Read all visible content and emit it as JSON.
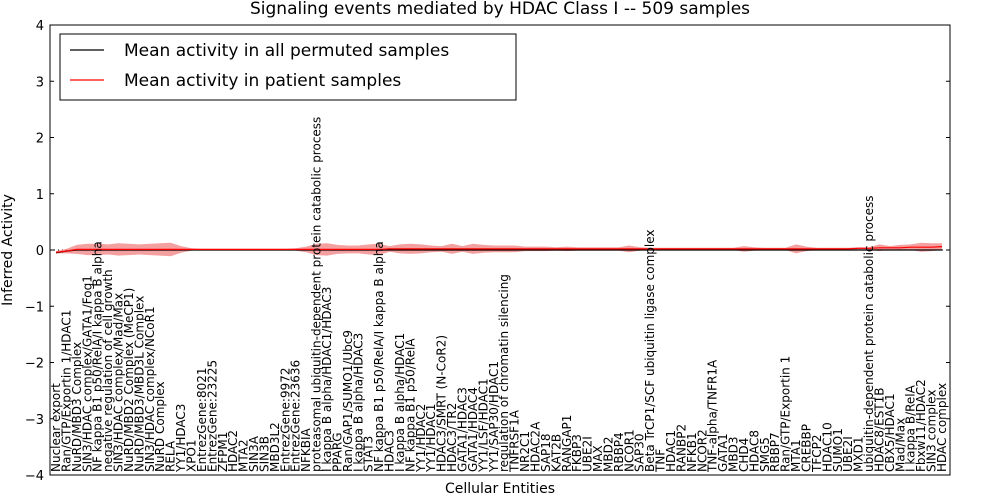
{
  "chart_data": {
    "type": "line",
    "title": "Signaling events mediated by HDAC Class I -- 509 samples",
    "xlabel": "Cellular Entities",
    "ylabel": "Inferred Activity",
    "ylim": [
      -4,
      4
    ],
    "yticks": [
      "−4",
      "−3",
      "−2",
      "−1",
      "0",
      "1",
      "2",
      "3",
      "4"
    ],
    "legend": {
      "position": "top-left",
      "entries": [
        {
          "label": "Mean activity in all permuted samples",
          "color": "#000000"
        },
        {
          "label": "Mean activity in patient samples",
          "color": "#ff0000"
        }
      ]
    },
    "colors": {
      "permuted": "#000000",
      "patient": "#ff0000",
      "band": "#f08080"
    },
    "categories": [
      "Nuclear export",
      "Ran/GTP/Exportin 1/HDAC1",
      "NuRD/MBD3 Complex",
      "SIN3/HDAC complex/GATA1/Fog1",
      "NF kappa B1 p50/RelA/I kappa B alpha",
      "negative regulation of cell growth",
      "SIN3/HDAC complex/Mad/Max",
      "NuRD/MBD2 Complex (MeCP1)",
      "NuRD/MBD3/MBD3L Complex",
      "SIN3/HDAC complex/NCoR1",
      "NuRD Complex",
      "RELA",
      "YY1/HDAC3",
      "XPO1",
      "EntrezGene:8021",
      "EntrezGene:23225",
      "ZFPM1",
      "HDAC2",
      "MTA2",
      "SIN3A",
      "SIN3B",
      "MBD3L2",
      "EntrezGene:9972",
      "EntrezGene:23636",
      "NFKBIA",
      "proteasomal ubiquitin-dependent protein catabolic process",
      "I kappa B alpha/HDAC1/HDAC3",
      "PPARG",
      "Ran/GAP1/SUMO1/Ubc9",
      "I kappa B alpha/HDAC3",
      "STAT3",
      "NF kappa B1 p50/RelA/I kappa B alpha",
      "HDAC3",
      "I kappa B alpha/HDAC1",
      "NF kappa B1 p50/RelA",
      "YY1/HDAC2",
      "YY1/HDAC1",
      "HDAC3/SMRT (N-CoR2)",
      "HDAC3/TR2",
      "GATA1/HDAC3",
      "GATA1/HDAC4",
      "YY1/LSF/HDAC1",
      "YY1/SAP30/HDAC1",
      "regulation of chromatin silencing",
      "TNFRSF1A",
      "NR2C1",
      "HDAC2A",
      "SAP18",
      "KAT2B",
      "RANGAP1",
      "FKBP3",
      "UBE2I",
      "MAX",
      "MBD2",
      "RBBP4",
      "NCOR1",
      "SAP30",
      "Beta TrCP1/SCF ubiquitin ligase complex",
      "TNF",
      "HDAC1",
      "RANBP2",
      "NFKB1",
      "NCOR2",
      "TNF-alpha/TNFR1A",
      "GATA1",
      "MBD3",
      "CHD4",
      "HDAC8",
      "SMG5",
      "RBBP7",
      "Ran/GTP/Exportin 1",
      "MTA1",
      "CREBBP",
      "TFCP2",
      "HDAC10",
      "SUMO1",
      "UBE2I",
      "MXD1",
      "ubiquitin-dependent protein catabolic process",
      "HDAC8/EST1B",
      "CBX5/HDAC1",
      "Mad/Max",
      "I kappa B/RelA",
      "Fbxw11/HDAC2",
      "SIN3 complex",
      "HDAC complex"
    ],
    "series": [
      {
        "name": "Mean activity in all permuted samples",
        "values": [
          -0.05,
          -0.02,
          0,
          0,
          0,
          0,
          0,
          0,
          0,
          0,
          0,
          0,
          0,
          0,
          0,
          0,
          0,
          0,
          0,
          0,
          0,
          0,
          0,
          0,
          0,
          0,
          0,
          0,
          0,
          0,
          0,
          0,
          0,
          0,
          0,
          0,
          0,
          0,
          0,
          0,
          0,
          0,
          0,
          0,
          0,
          0,
          0,
          0,
          0,
          0,
          0,
          0,
          0,
          0,
          0,
          0,
          0,
          0,
          0,
          0,
          0,
          0,
          0,
          0,
          0,
          0,
          0,
          0,
          0,
          0,
          0,
          0,
          0,
          0,
          0,
          0,
          0,
          0,
          0,
          0,
          0,
          0,
          0,
          0,
          0,
          0
        ]
      },
      {
        "name": "Mean activity in patient samples",
        "values": [
          -0.04,
          -0.02,
          0.01,
          0.01,
          0.01,
          0.01,
          0.01,
          0.01,
          0.01,
          0.01,
          0.01,
          0.01,
          0.01,
          0.01,
          0.01,
          0.01,
          0.01,
          0.01,
          0.01,
          0.01,
          0.01,
          0.01,
          0.01,
          0.01,
          0.01,
          0.01,
          0.01,
          0.01,
          0.01,
          0.01,
          0.01,
          0.01,
          0.02,
          0.02,
          0.02,
          0.02,
          0.02,
          0.02,
          0.02,
          0.02,
          0.02,
          0.02,
          0.02,
          0.02,
          0.02,
          0.02,
          0.02,
          0.02,
          0.02,
          0.02,
          0.02,
          0.02,
          0.02,
          0.02,
          0.02,
          0.02,
          0.02,
          0.02,
          0.02,
          0.02,
          0.02,
          0.02,
          0.02,
          0.02,
          0.02,
          0.02,
          0.02,
          0.02,
          0.02,
          0.02,
          0.02,
          0.02,
          0.02,
          0.02,
          0.02,
          0.02,
          0.02,
          0.03,
          0.03,
          0.04,
          0.04,
          0.04,
          0.05,
          0.05,
          0.05,
          0.06
        ]
      }
    ],
    "spread": [
      0.02,
      0.04,
      0.08,
      0.1,
      0.1,
      0.09,
      0.11,
      0.1,
      0.09,
      0.1,
      0.11,
      0.12,
      0.06,
      0.02,
      0.01,
      0.01,
      0.01,
      0.01,
      0.01,
      0.01,
      0.01,
      0.01,
      0.01,
      0.02,
      0.05,
      0.1,
      0.11,
      0.08,
      0.07,
      0.07,
      0.09,
      0.1,
      0.05,
      0.08,
      0.09,
      0.08,
      0.06,
      0.05,
      0.09,
      0.05,
      0.09,
      0.07,
      0.06,
      0.06,
      0.06,
      0.04,
      0.04,
      0.04,
      0.03,
      0.04,
      0.03,
      0.03,
      0.03,
      0.03,
      0.03,
      0.06,
      0.03,
      0.02,
      0.02,
      0.02,
      0.02,
      0.02,
      0.02,
      0.02,
      0.02,
      0.02,
      0.05,
      0.03,
      0.02,
      0.02,
      0.02,
      0.08,
      0.04,
      0.02,
      0.02,
      0.02,
      0.02,
      0.02,
      0.02,
      0.06,
      0.03,
      0.05,
      0.05,
      0.08,
      0.07,
      0.06
    ]
  }
}
